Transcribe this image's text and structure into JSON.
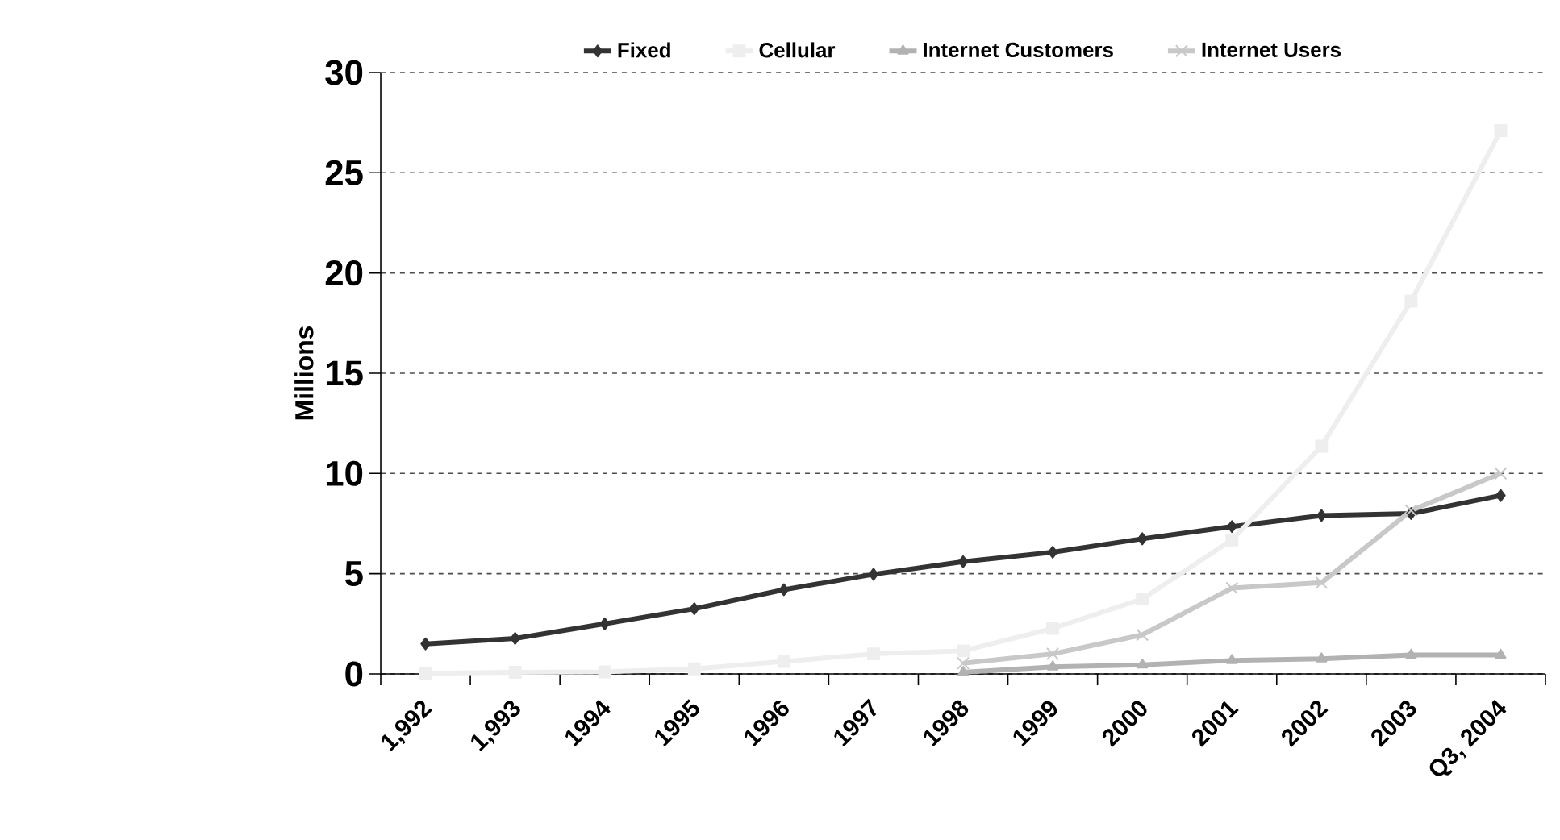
{
  "chart_data": {
    "type": "line",
    "ylabel": "Millions",
    "categories": [
      "1,992",
      "1,993",
      "1994",
      "1995",
      "1996",
      "1997",
      "1998",
      "1999",
      "2000",
      "2001",
      "2002",
      "2003",
      "Q3, 2004"
    ],
    "series": [
      {
        "name": "Fixed",
        "color": "#333333",
        "marker": "diamond",
        "values": [
          1.5,
          1.77,
          2.5,
          3.25,
          4.2,
          4.97,
          5.6,
          6.07,
          6.74,
          7.35,
          7.9,
          8.0,
          8.9
        ]
      },
      {
        "name": "Cellular",
        "color": "#eeeeee",
        "marker": "square",
        "values": [
          0.03,
          0.08,
          0.1,
          0.25,
          0.62,
          1.0,
          1.15,
          2.27,
          3.74,
          6.68,
          11.36,
          18.6,
          27.1
        ]
      },
      {
        "name": "Internet Customers",
        "color": "#b2b2b2",
        "marker": "triangle",
        "values": [
          null,
          null,
          null,
          null,
          null,
          null,
          0.08,
          0.35,
          0.45,
          0.67,
          0.75,
          0.94,
          0.94
        ]
      },
      {
        "name": "Internet Users",
        "color": "#c8c8c8",
        "marker": "cross",
        "values": [
          null,
          null,
          null,
          null,
          null,
          null,
          0.53,
          1.0,
          1.95,
          4.28,
          4.55,
          8.15,
          10.0
        ]
      }
    ],
    "ylim": [
      0,
      30
    ],
    "yticks": [
      0,
      5,
      10,
      15,
      20,
      25,
      30
    ],
    "grid": "y",
    "legend": "top"
  }
}
